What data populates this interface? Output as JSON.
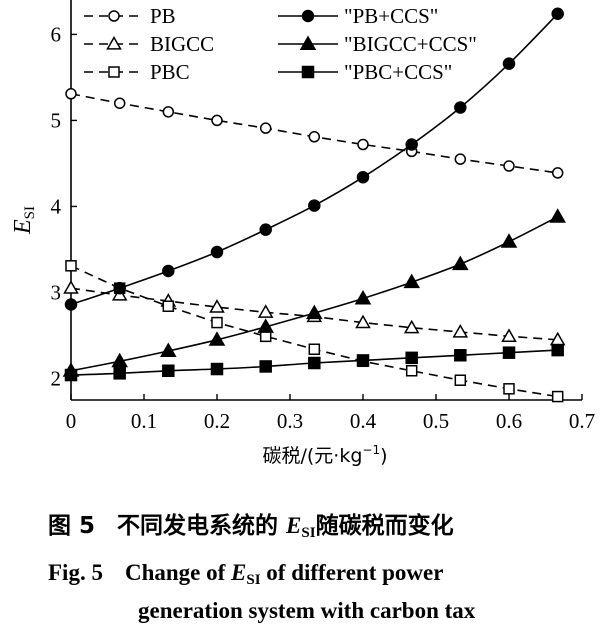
{
  "chart_data": {
    "type": "line",
    "xlabel": "碳税/(元·kg",
    "xlabel_sup": "−1",
    "xlabel_close": ")",
    "ylabel_main": "E",
    "ylabel_sub": "SI",
    "xlim": [
      0,
      0.7
    ],
    "ylim": [
      1.75,
      6.4
    ],
    "x_ticks": [
      0,
      0.1,
      0.2,
      0.3,
      0.4,
      0.5,
      0.6,
      0.7
    ],
    "x_tick_labels": [
      "0",
      "0.1",
      "0.2",
      "0.3",
      "0.4",
      "0.5",
      "0.6",
      "0.7"
    ],
    "y_ticks": [
      2,
      3,
      4,
      5,
      6
    ],
    "y_tick_labels": [
      "2",
      "3",
      "4",
      "5",
      "6"
    ],
    "grid": false,
    "legend_position": "top-left",
    "x": [
      0,
      0.0667,
      0.1333,
      0.2,
      0.2667,
      0.3333,
      0.4,
      0.4667,
      0.5333,
      0.6,
      0.6667
    ],
    "series": [
      {
        "name": "PB",
        "marker": "circle",
        "filled": false,
        "dashed": true,
        "values": [
          5.31,
          5.2,
          5.1,
          5.0,
          4.91,
          4.81,
          4.72,
          4.64,
          4.55,
          4.47,
          4.39
        ]
      },
      {
        "name": "BIGCC",
        "marker": "triangle",
        "filled": false,
        "dashed": true,
        "values": [
          3.05,
          2.97,
          2.9,
          2.83,
          2.77,
          2.72,
          2.65,
          2.59,
          2.54,
          2.49,
          2.45
        ]
      },
      {
        "name": "PBC",
        "marker": "square",
        "filled": false,
        "dashed": true,
        "values": [
          3.31,
          3.05,
          2.84,
          2.65,
          2.49,
          2.34,
          2.2,
          2.09,
          1.98,
          1.88,
          1.79
        ]
      },
      {
        "name": "\"PB+CCS\"",
        "marker": "circle",
        "filled": true,
        "dashed": false,
        "values": [
          2.86,
          3.05,
          3.25,
          3.47,
          3.73,
          4.01,
          4.34,
          4.72,
          5.15,
          5.66,
          6.24
        ]
      },
      {
        "name": "\"BIGCC+CCS\"",
        "marker": "triangle",
        "filled": true,
        "dashed": false,
        "values": [
          2.09,
          2.2,
          2.32,
          2.45,
          2.6,
          2.76,
          2.93,
          3.12,
          3.33,
          3.59,
          3.88
        ]
      },
      {
        "name": "\"PBC+CCS\"",
        "marker": "square",
        "filled": true,
        "dashed": false,
        "values": [
          2.04,
          2.06,
          2.09,
          2.11,
          2.14,
          2.18,
          2.21,
          2.24,
          2.27,
          2.3,
          2.33
        ]
      }
    ]
  },
  "caption": {
    "cn_num": "图 5",
    "cn_text_a": "不同发电系统的 ",
    "cn_text_e": "E",
    "cn_text_sub": "SI",
    "cn_text_b": "随碳税而变化",
    "en_num": "Fig. 5",
    "en_line1_a": "Change of ",
    "en_line1_e": "E",
    "en_line1_sub": "SI",
    "en_line1_b": " of different power",
    "en_line2": "generation system with carbon tax"
  }
}
